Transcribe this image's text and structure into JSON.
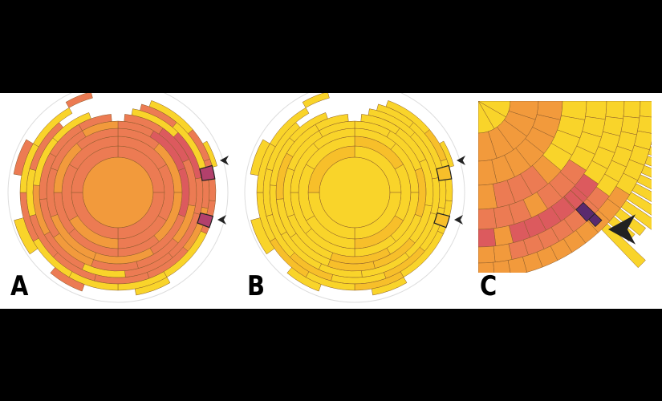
{
  "figure": {
    "panels": [
      {
        "id": "A",
        "label": "A",
        "colormap": "magma-warm",
        "highlights": 2
      },
      {
        "id": "B",
        "label": "B",
        "colormap": "yellow",
        "highlights": 2
      },
      {
        "id": "C",
        "label": "C",
        "colormap": "magma-zoom",
        "highlights": 1
      }
    ],
    "colors": {
      "background": "#000000",
      "band": "#ffffff",
      "yellow": "#f9d42a",
      "orange": "#f29a3c",
      "coral": "#ec7b53",
      "rose": "#dc5a5e",
      "magenta": "#b2406c",
      "purple": "#5a2a6e",
      "stroke": "#8a5a2a",
      "guide": "#dddddd"
    },
    "icons": [
      "arrowhead-icon"
    ]
  }
}
